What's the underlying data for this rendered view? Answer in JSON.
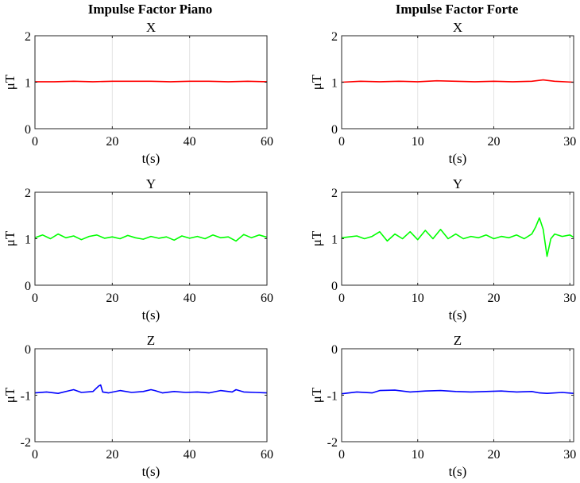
{
  "figure": {
    "column_titles": [
      "Impulse Factor Piano",
      "Impulse Factor Forte"
    ]
  },
  "chart_data": [
    {
      "type": "line",
      "title": "X",
      "xlabel": "t(s)",
      "ylabel": "μT",
      "xlim": [
        0,
        60
      ],
      "ylim": [
        0,
        2
      ],
      "xticks": [
        0,
        20,
        40,
        60
      ],
      "yticks": [
        0,
        1,
        2
      ],
      "grid": "x-only",
      "color": "#ff0000",
      "series": [
        {
          "x": [
            0,
            5,
            10,
            15,
            20,
            25,
            30,
            35,
            40,
            45,
            50,
            55,
            60
          ],
          "values": [
            1.01,
            1.01,
            1.02,
            1.01,
            1.02,
            1.02,
            1.02,
            1.01,
            1.02,
            1.02,
            1.01,
            1.02,
            1.01
          ]
        }
      ]
    },
    {
      "type": "line",
      "title": "X",
      "xlabel": "t(s)",
      "ylabel": "μT",
      "xlim": [
        0,
        30.5
      ],
      "ylim": [
        0,
        2
      ],
      "xticks": [
        0,
        10,
        20,
        30
      ],
      "yticks": [
        0,
        1,
        2
      ],
      "grid": "x-only",
      "color": "#ff0000",
      "series": [
        {
          "x": [
            0,
            2.5,
            5,
            7.5,
            10,
            12.5,
            15,
            17.5,
            20,
            22.5,
            25,
            26.5,
            27,
            28,
            30.5
          ],
          "values": [
            1.0,
            1.02,
            1.01,
            1.02,
            1.01,
            1.03,
            1.02,
            1.01,
            1.02,
            1.01,
            1.02,
            1.05,
            1.04,
            1.02,
            1.0
          ]
        }
      ]
    },
    {
      "type": "line",
      "title": "Y",
      "xlabel": "t(s)",
      "ylabel": "μT",
      "xlim": [
        0,
        60
      ],
      "ylim": [
        0,
        2
      ],
      "xticks": [
        0,
        20,
        40,
        60
      ],
      "yticks": [
        0,
        1,
        2
      ],
      "grid": "x-only",
      "color": "#00ff00",
      "series": [
        {
          "x": [
            0,
            2,
            4,
            6,
            8,
            10,
            12,
            14,
            16,
            18,
            20,
            22,
            24,
            26,
            28,
            30,
            32,
            34,
            36,
            38,
            40,
            42,
            44,
            46,
            48,
            50,
            52,
            54,
            56,
            58,
            60
          ],
          "values": [
            1.02,
            1.08,
            1.0,
            1.1,
            1.02,
            1.06,
            0.98,
            1.05,
            1.08,
            1.01,
            1.04,
            1.0,
            1.07,
            1.02,
            0.99,
            1.05,
            1.01,
            1.04,
            0.97,
            1.06,
            1.01,
            1.05,
            1.0,
            1.08,
            1.02,
            1.04,
            0.95,
            1.09,
            1.02,
            1.08,
            1.03
          ]
        }
      ]
    },
    {
      "type": "line",
      "title": "Y",
      "xlabel": "t(s)",
      "ylabel": "μT",
      "xlim": [
        0,
        30.5
      ],
      "ylim": [
        0,
        2
      ],
      "xticks": [
        0,
        10,
        20,
        30
      ],
      "yticks": [
        0,
        1,
        2
      ],
      "grid": "x-only",
      "color": "#00ff00",
      "series": [
        {
          "x": [
            0,
            2,
            3,
            4,
            5,
            6,
            7,
            8,
            9,
            10,
            11,
            12,
            13,
            14,
            15,
            16,
            17,
            18,
            19,
            20,
            21,
            22,
            23,
            24,
            25,
            25.5,
            26,
            26.5,
            27,
            27.5,
            28,
            29,
            30,
            30.5
          ],
          "values": [
            1.02,
            1.06,
            1.0,
            1.05,
            1.15,
            0.95,
            1.1,
            1.0,
            1.15,
            0.98,
            1.18,
            1.0,
            1.2,
            1.0,
            1.1,
            1.0,
            1.05,
            1.02,
            1.08,
            1.0,
            1.05,
            1.02,
            1.08,
            1.0,
            1.1,
            1.25,
            1.45,
            1.2,
            0.62,
            1.0,
            1.1,
            1.05,
            1.08,
            1.03
          ]
        }
      ]
    },
    {
      "type": "line",
      "title": "Z",
      "xlabel": "t(s)",
      "ylabel": "μT",
      "xlim": [
        0,
        60
      ],
      "ylim": [
        -2,
        0
      ],
      "xticks": [
        0,
        20,
        40,
        60
      ],
      "yticks": [
        -2,
        -1,
        0
      ],
      "grid": "x-only",
      "color": "#0000ff",
      "series": [
        {
          "x": [
            0,
            3,
            6,
            9,
            10,
            12,
            15,
            16.5,
            17,
            17.5,
            19,
            22,
            25,
            28,
            30,
            31,
            33,
            36,
            39,
            42,
            45,
            48,
            51,
            52,
            54,
            57,
            60
          ],
          "values": [
            -0.95,
            -0.93,
            -0.96,
            -0.9,
            -0.88,
            -0.94,
            -0.92,
            -0.8,
            -0.78,
            -0.93,
            -0.95,
            -0.9,
            -0.94,
            -0.92,
            -0.88,
            -0.9,
            -0.95,
            -0.92,
            -0.94,
            -0.93,
            -0.95,
            -0.9,
            -0.93,
            -0.88,
            -0.93,
            -0.94,
            -0.95
          ]
        }
      ]
    },
    {
      "type": "line",
      "title": "Z",
      "xlabel": "t(s)",
      "ylabel": "μT",
      "xlim": [
        0,
        30.5
      ],
      "ylim": [
        -2,
        0
      ],
      "xticks": [
        0,
        10,
        20,
        30
      ],
      "yticks": [
        -2,
        -1,
        0
      ],
      "grid": "x-only",
      "color": "#0000ff",
      "series": [
        {
          "x": [
            0,
            2,
            4,
            5,
            7,
            9,
            11,
            13,
            15,
            17,
            19,
            21,
            23,
            25,
            26,
            27,
            29,
            30.5
          ],
          "values": [
            -0.97,
            -0.93,
            -0.95,
            -0.9,
            -0.89,
            -0.93,
            -0.91,
            -0.9,
            -0.92,
            -0.93,
            -0.92,
            -0.91,
            -0.93,
            -0.92,
            -0.95,
            -0.96,
            -0.94,
            -0.96
          ]
        }
      ]
    }
  ]
}
